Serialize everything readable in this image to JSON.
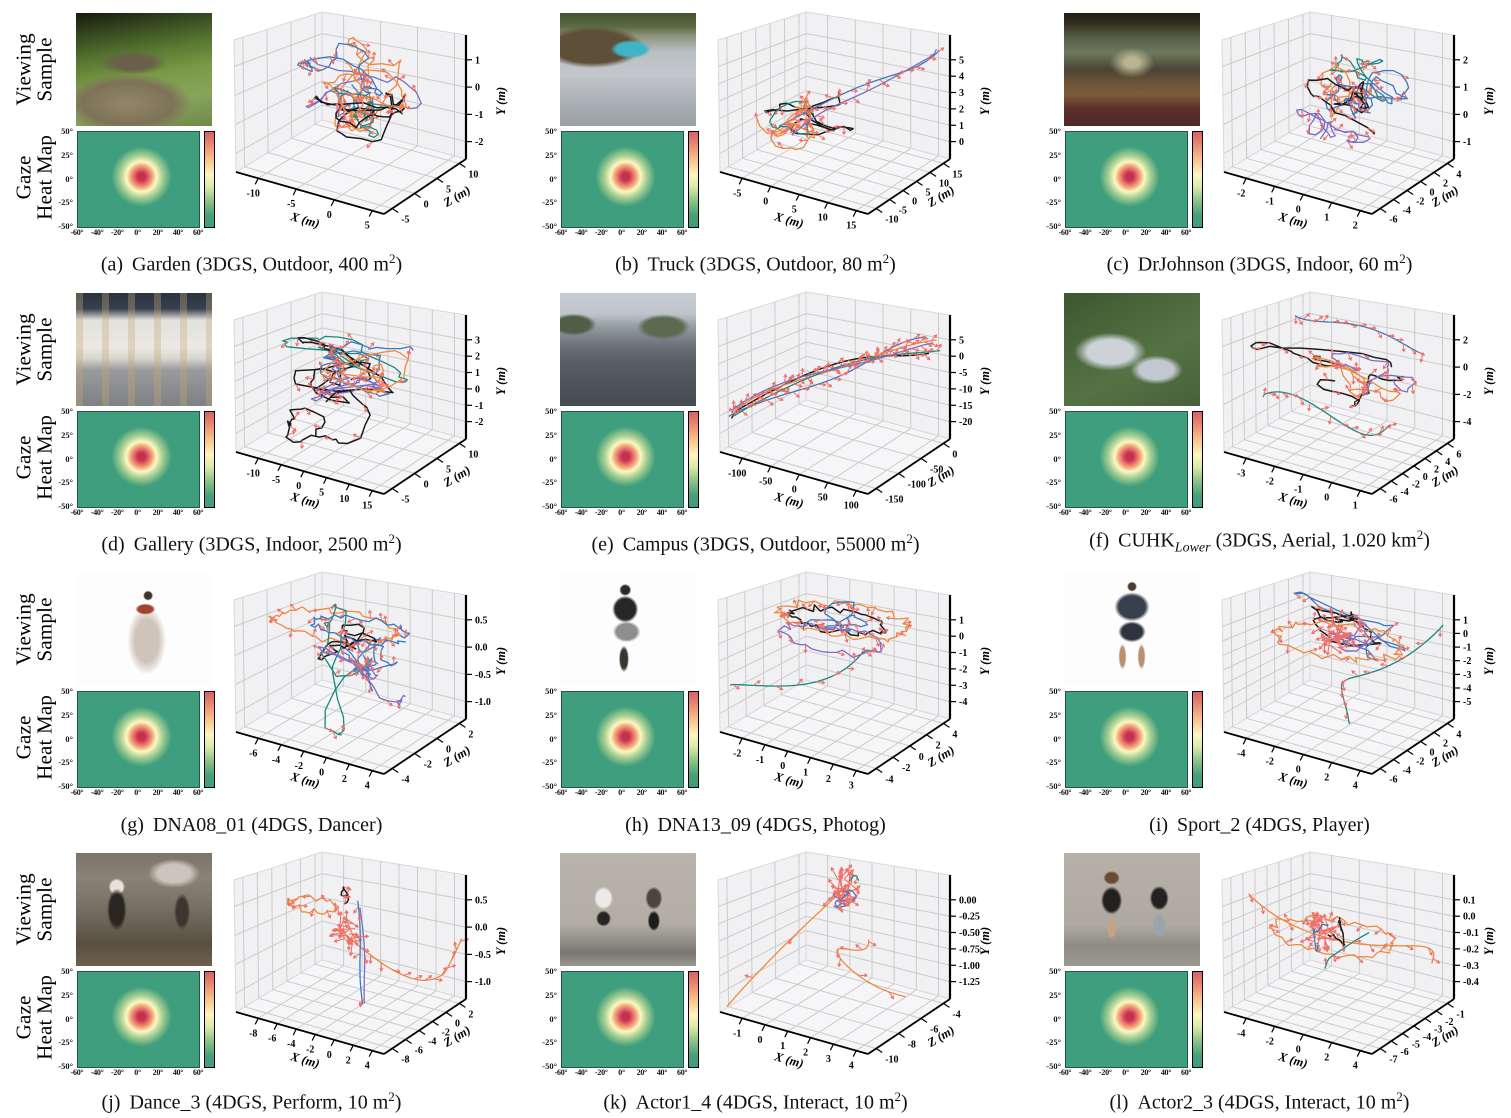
{
  "page": {
    "row_labels": {
      "viewing_sample": [
        "Viewing",
        "Sample"
      ],
      "gaze_heat_map": [
        "Gaze",
        "Heat Map"
      ]
    }
  },
  "gaze_heatmap": {
    "type": "heatmap",
    "description": "Gaze direction heat map, identical style in every panel: green field with a central fixation hotspot near 0°,0°",
    "x_ticks": [
      "-60°",
      "-40°",
      "-20°",
      "0°",
      "20°",
      "40°",
      "60°"
    ],
    "y_ticks": [
      "50°",
      "25°",
      "0°",
      "-25°",
      "-50°"
    ],
    "colors": {
      "background": "#3f9e7d",
      "hotspot": "#c5334b",
      "warm": "#f0a878",
      "pale": "#fdf8c3"
    },
    "colorbar_top_to_bottom": [
      "#d95f68",
      "#ea8d70",
      "#f8c78b",
      "#fdf6bf",
      "#d9e9a5",
      "#90c48a",
      "#3f9e7d"
    ]
  },
  "plot_style": {
    "trajectory_colors": [
      "#1b1b1b",
      "#ee8a3c",
      "#3c78c0",
      "#17897e",
      "#7a6ec6"
    ],
    "gaze_arrow_color": "#ef6f66",
    "pane_color": "#f1f1f3",
    "grid_color": "#cbcbcb"
  },
  "chart_data": [
    {
      "id": "a",
      "type": "line",
      "title": "(a) Garden (3DGS, Outdoor, 400 m²)",
      "caption": {
        "label": "(a)",
        "name": "Garden",
        "name_sub": "",
        "info_main": "(3DGS, Outdoor, 400 m",
        "info_sup": "2",
        "info_end": ")"
      },
      "photo_desc": "Garden with round stone table on paved patio surrounded by lawn and hedges",
      "axes": {
        "x_label": "X (m)",
        "y_label": "Y (m)",
        "z_label": "Z (m)",
        "x_ticks": [
          -10,
          -5,
          0,
          5
        ],
        "y_ticks": [
          "1",
          "0",
          "-1",
          "-2"
        ],
        "z_ticks": [
          -5,
          0,
          5,
          10
        ]
      },
      "series_colors": [
        "black",
        "orange",
        "blue",
        "teal",
        "purple"
      ],
      "pattern": "dense tangled viewing trajectories with red gaze arrows"
    },
    {
      "id": "b",
      "type": "line",
      "title": "(b) Truck (3DGS, Outdoor, 80 m²)",
      "caption": {
        "label": "(b)",
        "name": "Truck",
        "name_sub": "",
        "info_main": "(3DGS, Outdoor, 80 m",
        "info_sup": "2",
        "info_end": ")"
      },
      "photo_desc": "Cyan flat-bed truck parked on a concrete yard",
      "axes": {
        "x_label": "X (m)",
        "y_label": "Y (m)",
        "z_label": "Z (m)",
        "x_ticks": [
          -5,
          0,
          5,
          10,
          15
        ],
        "y_ticks": [
          "5",
          "4",
          "3",
          "2",
          "1",
          "0"
        ],
        "z_ticks": [
          -10,
          -5,
          0,
          5,
          10,
          15
        ]
      },
      "series_colors": [
        "black",
        "orange",
        "blue",
        "teal",
        "purple"
      ],
      "pattern": "compact cluster at left plus long blue/purple excursion rising to top right"
    },
    {
      "id": "c",
      "type": "line",
      "title": "(c) DrJohnson (3DGS, Indoor, 60 m²)",
      "caption": {
        "label": "(c)",
        "name": "DrJohnson",
        "name_sub": "",
        "info_main": "(3DGS, Indoor, 60 m",
        "info_sup": "2",
        "info_end": ")"
      },
      "photo_desc": "Indoor dining room with green walls, table, chairs and red oriental rug",
      "axes": {
        "x_label": "X (m)",
        "y_label": "Y (m)",
        "z_label": "Z (m)",
        "x_ticks": [
          -2,
          -1,
          0,
          1,
          2
        ],
        "y_ticks": [
          "2",
          "1",
          "0",
          "-1"
        ],
        "z_ticks": [
          -6,
          -4,
          -2,
          0,
          2,
          4
        ]
      },
      "series_colors": [
        "black",
        "orange",
        "blue",
        "teal",
        "purple"
      ],
      "pattern": "vertically stacked swirling trajectories"
    },
    {
      "id": "d",
      "type": "line",
      "title": "(d) Gallery (3DGS, Indoor, 2500 m²)",
      "caption": {
        "label": "(d)",
        "name": "Gallery",
        "name_sub": "",
        "info_main": "(3DGS, Indoor, 2500 m",
        "info_sup": "2",
        "info_end": ")"
      },
      "photo_desc": "Art gallery hall with framed works along white walls and glass ceiling",
      "axes": {
        "x_label": "X (m)",
        "y_label": "Y (m)",
        "z_label": "Z (m)",
        "x_ticks": [
          -10,
          -5,
          0,
          5,
          10,
          15
        ],
        "y_ticks": [
          "3",
          "2",
          "1",
          "0",
          "-1",
          "-2"
        ],
        "z_ticks": [
          -5,
          0,
          5,
          10
        ]
      },
      "series_colors": [
        "black",
        "orange",
        "blue",
        "teal",
        "purple"
      ],
      "pattern": "wide horizontal tangle with long black walking path at lower left"
    },
    {
      "id": "e",
      "type": "line",
      "title": "(e) Campus (3DGS, Outdoor, 55000 m²)",
      "caption": {
        "label": "(e)",
        "name": "Campus",
        "name_sub": "",
        "info_main": "(3DGS, Outdoor, 55000 m",
        "info_sup": "2",
        "info_end": ")"
      },
      "photo_desc": "Campus road with parked cars, trees and buildings on both sides",
      "axes": {
        "x_label": "X (m)",
        "y_label": "Y (m)",
        "z_label": "Z (m)",
        "x_ticks": [
          -100,
          -50,
          0,
          50,
          100
        ],
        "y_ticks": [
          "5",
          "0",
          "-5",
          "-10",
          "-15",
          "-20"
        ],
        "z_ticks": [
          -150,
          -100,
          -50,
          0
        ]
      },
      "series_colors": [
        "black",
        "orange",
        "blue",
        "teal",
        "purple"
      ],
      "pattern": "all trajectories follow one long arc from lower left rising to the right, dense red gaze arrows"
    },
    {
      "id": "f",
      "type": "line",
      "title": "(f) CUHK_Lower (3DGS, Aerial, 1.020 km²)",
      "caption": {
        "label": "(f)",
        "name": "CUHK",
        "name_sub": "Lower",
        "info_main": "(3DGS, Aerial, 1.020 km",
        "info_sup": "2",
        "info_end": ")"
      },
      "photo_desc": "Aerial view of campus buildings among dense green hillside",
      "axes": {
        "x_label": "X (m)",
        "y_label": "Y (m)",
        "z_label": "Z (m)",
        "x_ticks": [
          -3,
          -2,
          -1,
          0,
          1
        ],
        "y_ticks": [
          "2",
          "0",
          "-2",
          "-4"
        ],
        "z_ticks": [
          -6,
          -4,
          -2,
          0,
          2,
          4,
          6
        ]
      },
      "series_colors": [
        "black",
        "orange",
        "blue",
        "teal",
        "purple"
      ],
      "pattern": "layered horizontal sweeps: blue near top, black in middle, teal near bottom, dense arrows"
    },
    {
      "id": "g",
      "type": "line",
      "title": "(g) DNA08_01 (4DGS, Dancer)",
      "caption": {
        "label": "(g)",
        "name": "DNA08_01",
        "name_sub": "",
        "info_main": "(4DGS, Dancer)",
        "info_sup": "",
        "info_end": ""
      },
      "photo_desc": "Dancer in flowing pale traditional costume with raised arm, white background",
      "axes": {
        "x_label": "X (m)",
        "y_label": "Y (m)",
        "z_label": "Z (m)",
        "x_ticks": [
          -6,
          -4,
          -2,
          0,
          2,
          4
        ],
        "y_ticks": [
          "0.5",
          "0.0",
          "-0.5",
          "-1.0"
        ],
        "z_ticks": [
          -4,
          -2,
          0,
          2
        ]
      },
      "series_colors": [
        "black",
        "orange",
        "blue",
        "teal",
        "purple"
      ],
      "pattern": "large orange orbit around a dense central tangle with drooping teal strands"
    },
    {
      "id": "h",
      "type": "line",
      "title": "(h) DNA13_09 (4DGS, Photog)",
      "caption": {
        "label": "(h)",
        "name": "DNA13_09",
        "name_sub": "",
        "info_main": "(4DGS, Photog)",
        "info_sup": "",
        "info_end": ""
      },
      "photo_desc": "Girl in black t-shirt and plaid skirt holding a camera, white background",
      "axes": {
        "x_label": "X (m)",
        "y_label": "Y (m)",
        "z_label": "Z (m)",
        "x_ticks": [
          -2,
          -1,
          0,
          1,
          2,
          3
        ],
        "y_ticks": [
          "1",
          "0",
          "-1",
          "-2",
          "-3",
          "-4"
        ],
        "z_ticks": [
          -4,
          -2,
          0,
          2,
          4
        ]
      },
      "series_colors": [
        "black",
        "orange",
        "blue",
        "teal",
        "purple"
      ],
      "pattern": "flat circular orbits near the top plus one teal excursion to lower left"
    },
    {
      "id": "i",
      "type": "line",
      "title": "(i) Sport_2 (4DGS, Player)",
      "caption": {
        "label": "(i)",
        "name": "Sport_2",
        "name_sub": "",
        "info_main": "(4DGS, Player)",
        "info_sup": "",
        "info_end": ""
      },
      "photo_desc": "Athlete in dark sportswear mid-squat with arms spread, white background",
      "axes": {
        "x_label": "X (m)",
        "y_label": "Y (m)",
        "z_label": "Z (m)",
        "x_ticks": [
          -4,
          -2,
          0,
          2,
          4
        ],
        "y_ticks": [
          "1",
          "0",
          "-1",
          "-2",
          "-3",
          "-4",
          "-5"
        ],
        "z_ticks": [
          -6,
          -4,
          -2,
          0,
          2,
          4
        ]
      },
      "series_colors": [
        "black",
        "orange",
        "blue",
        "teal",
        "purple"
      ],
      "pattern": "flat upper tangle with strong red arrow burst at center and teal spiral descending right"
    },
    {
      "id": "j",
      "type": "line",
      "title": "(j) Dance_3 (4DGS, Perform, 10 m²)",
      "caption": {
        "label": "(j)",
        "name": "Dance_3",
        "name_sub": "",
        "info_main": "(4DGS, Perform, 10 m",
        "info_sup": "2",
        "info_end": ")"
      },
      "photo_desc": "Dancers rehearsing in a fitness studio with posters on the wall",
      "axes": {
        "x_label": "X (m)",
        "y_label": "Y (m)",
        "z_label": "Z (m)",
        "x_ticks": [
          -8,
          -6,
          -4,
          -2,
          0,
          2,
          4
        ],
        "y_ticks": [
          "0.5",
          "0.0",
          "-0.5",
          "-1.0"
        ],
        "z_ticks": [
          -8,
          -6,
          -4,
          -2,
          0,
          2
        ]
      },
      "series_colors": [
        "black",
        "orange",
        "blue",
        "purple"
      ],
      "pattern": "sparse: orange loop at left, long orange curve to the right, straight blue/purple plunge through the floor"
    },
    {
      "id": "k",
      "type": "line",
      "title": "(k) Actor1_4 (4DGS, Interact, 10 m²)",
      "caption": {
        "label": "(k)",
        "name": "Actor1_4",
        "name_sub": "",
        "info_main": "(4DGS, Interact, 10 m",
        "info_sup": "2",
        "info_end": ")"
      },
      "photo_desc": "Two men by a concrete wall, one holding a gourd, one holding a panda toy",
      "axes": {
        "x_label": "X (m)",
        "y_label": "Y (m)",
        "z_label": "Z (m)",
        "x_ticks": [
          -1,
          0,
          1,
          2,
          3,
          4
        ],
        "y_ticks": [
          "0.00",
          "-0.25",
          "-0.50",
          "-0.75",
          "-1.00",
          "-1.25"
        ],
        "z_ticks": [
          -10,
          -8,
          -6,
          -4
        ]
      },
      "series_colors": [
        "orange",
        "blue",
        "teal",
        "purple"
      ],
      "pattern": "red arrow cluster at top with long straight orange dive to the lower-left corner and orange zigzag at right"
    },
    {
      "id": "l",
      "type": "line",
      "title": "(l) Actor2_3 (4DGS, Interact, 10 m²)",
      "caption": {
        "label": "(l)",
        "name": "Actor2_3",
        "name_sub": "",
        "info_main": "(4DGS, Interact, 10 m",
        "info_sup": "2",
        "info_end": ")"
      },
      "photo_desc": "Woman holding a watermelon and man holding a white toy in front of a wall",
      "axes": {
        "x_label": "X (m)",
        "y_label": "Y (m)",
        "z_label": "Z (m)",
        "x_ticks": [
          -4,
          -2,
          0,
          2,
          4
        ],
        "y_ticks": [
          "0.1",
          "0.0",
          "-0.1",
          "-0.2",
          "-0.3",
          "-0.4"
        ],
        "z_ticks": [
          -7,
          -6,
          -5,
          -4,
          -3,
          -2,
          -1
        ]
      },
      "series_colors": [
        "black",
        "orange",
        "blue",
        "teal"
      ],
      "pattern": "orange loops surrounding a vertical red arrow cluster with teal triangle path"
    }
  ]
}
